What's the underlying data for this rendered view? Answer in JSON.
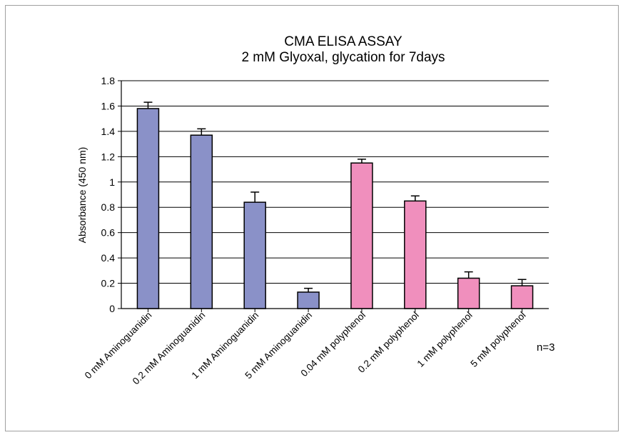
{
  "chart_data": {
    "type": "bar",
    "title": "CMA ELISA ASSAY",
    "subtitle": "2 mM Glyoxal, glycation for 7days",
    "xlabel": "",
    "ylabel": "Absorbance (450 nm)",
    "ylim": [
      0,
      1.8
    ],
    "yticks": [
      "0",
      "0.2",
      "0.4",
      "0.6",
      "0.8",
      "1",
      "1.2",
      "1.4",
      "1.6",
      "1.8"
    ],
    "grid": true,
    "categories": [
      "0 mM Aminoguanidin",
      "0.2 mM Aminoguanidin",
      "1 mM Aminoguanidin",
      "5 mM Aminoguanidin",
      "0.04 mM polyphenol",
      "0.2 mM polyphenol",
      "1 mM polyphenol",
      "5 mM polyphenol"
    ],
    "values": [
      1.58,
      1.37,
      0.84,
      0.13,
      1.15,
      0.85,
      0.24,
      0.18
    ],
    "errors": [
      0.05,
      0.05,
      0.08,
      0.03,
      0.03,
      0.04,
      0.05,
      0.05
    ],
    "colors": [
      "#8a91c8",
      "#8a91c8",
      "#8a91c8",
      "#8a91c8",
      "#f08fbd",
      "#f08fbd",
      "#f08fbd",
      "#f08fbd"
    ],
    "annotation": "n=3"
  }
}
